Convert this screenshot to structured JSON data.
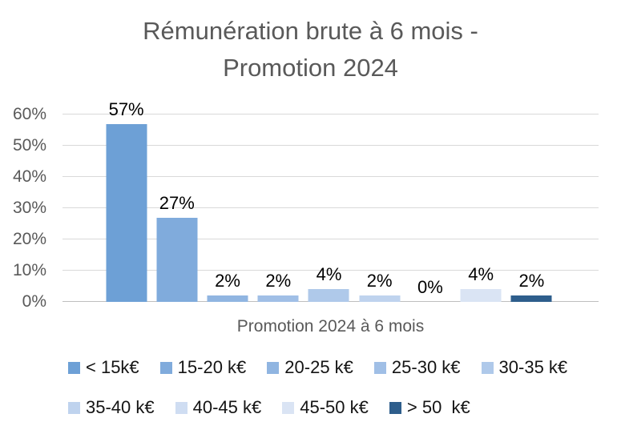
{
  "title": {
    "lines": [
      "Rémunération brute à 6 mois -",
      "Promotion 2024"
    ],
    "full": "Rémunération brute à 6 mois - Promotion 2024"
  },
  "chart_data": {
    "type": "bar",
    "title": "Rémunération brute à 6 mois - Promotion 2024",
    "categories": [
      "< 15k€",
      "15-20 k€",
      "20-25 k€",
      "25-30 k€",
      "30-35 k€",
      "35-40 k€",
      "40-45 k€",
      "45-50 k€",
      "> 50  k€"
    ],
    "values": [
      57,
      27,
      2,
      2,
      4,
      2,
      0,
      4,
      2
    ],
    "value_labels": [
      "57%",
      "27%",
      "2%",
      "2%",
      "4%",
      "2%",
      "0%",
      "4%",
      "2%"
    ],
    "bar_colors": [
      "#6DA0D6",
      "#80ABDC",
      "#90B5E1",
      "#A0BFE6",
      "#AFC9EA",
      "#BFD3EE",
      "#CFDDF2",
      "#DAE4F4",
      "#2E5E8C"
    ],
    "xlabel": "Promotion 2024 à 6 mois",
    "ylabel": "",
    "ylim": [
      0,
      60
    ],
    "yticks": [
      0,
      10,
      20,
      30,
      40,
      50,
      60
    ],
    "ytick_labels": [
      "0%",
      "10%",
      "20%",
      "30%",
      "40%",
      "50%",
      "60%"
    ],
    "grid": true,
    "legend_position": "bottom",
    "colors": {
      "title_text": "#595959",
      "axis_text": "#595959",
      "data_label_text": "#000000",
      "gridline": "#D9D9D9",
      "axis_line": "#BFBFBF",
      "background": "#FFFFFF"
    }
  }
}
